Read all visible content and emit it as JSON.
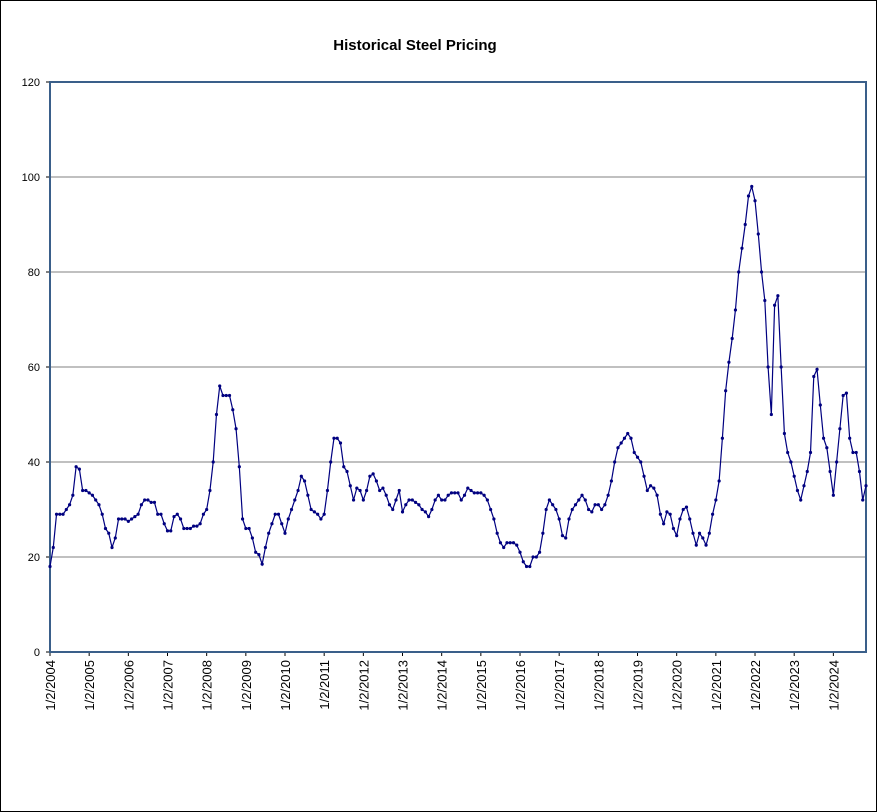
{
  "chart_data": {
    "type": "line",
    "title": "Historical Steel Pricing",
    "x": [
      "1/2/2004",
      "2/2/2004",
      "3/2/2004",
      "4/2/2004",
      "5/2/2004",
      "6/2/2004",
      "7/2/2004",
      "8/2/2004",
      "9/2/2004",
      "10/2/2004",
      "11/2/2004",
      "12/2/2004",
      "1/2/2005",
      "2/2/2005",
      "3/2/2005",
      "4/2/2005",
      "5/2/2005",
      "6/2/2005",
      "7/2/2005",
      "8/2/2005",
      "9/2/2005",
      "10/2/2005",
      "11/2/2005",
      "12/2/2005",
      "1/2/2006",
      "2/2/2006",
      "3/2/2006",
      "4/2/2006",
      "5/2/2006",
      "6/2/2006",
      "7/2/2006",
      "8/2/2006",
      "9/2/2006",
      "10/2/2006",
      "11/2/2006",
      "12/2/2006",
      "1/2/2007",
      "2/2/2007",
      "3/2/2007",
      "4/2/2007",
      "5/2/2007",
      "6/2/2007",
      "7/2/2007",
      "8/2/2007",
      "9/2/2007",
      "10/2/2007",
      "11/2/2007",
      "12/2/2007",
      "1/2/2008",
      "2/2/2008",
      "3/2/2008",
      "4/2/2008",
      "5/2/2008",
      "6/2/2008",
      "7/2/2008",
      "8/2/2008",
      "9/2/2008",
      "10/2/2008",
      "11/2/2008",
      "12/2/2008",
      "1/2/2009",
      "2/2/2009",
      "3/2/2009",
      "4/2/2009",
      "5/2/2009",
      "6/2/2009",
      "7/2/2009",
      "8/2/2009",
      "9/2/2009",
      "10/2/2009",
      "11/2/2009",
      "12/2/2009",
      "1/2/2010",
      "2/2/2010",
      "3/2/2010",
      "4/2/2010",
      "5/2/2010",
      "6/2/2010",
      "7/2/2010",
      "8/2/2010",
      "9/2/2010",
      "10/2/2010",
      "11/2/2010",
      "12/2/2010",
      "1/2/2011",
      "2/2/2011",
      "3/2/2011",
      "4/2/2011",
      "5/2/2011",
      "6/2/2011",
      "7/2/2011",
      "8/2/2011",
      "9/2/2011",
      "10/2/2011",
      "11/2/2011",
      "12/2/2011",
      "1/2/2012",
      "2/2/2012",
      "3/2/2012",
      "4/2/2012",
      "5/2/2012",
      "6/2/2012",
      "7/2/2012",
      "8/2/2012",
      "9/2/2012",
      "10/2/2012",
      "11/2/2012",
      "12/2/2012",
      "1/2/2013",
      "2/2/2013",
      "3/2/2013",
      "4/2/2013",
      "5/2/2013",
      "6/2/2013",
      "7/2/2013",
      "8/2/2013",
      "9/2/2013",
      "10/2/2013",
      "11/2/2013",
      "12/2/2013",
      "1/2/2014",
      "2/2/2014",
      "3/2/2014",
      "4/2/2014",
      "5/2/2014",
      "6/2/2014",
      "7/2/2014",
      "8/2/2014",
      "9/2/2014",
      "10/2/2014",
      "11/2/2014",
      "12/2/2014",
      "1/2/2015",
      "2/2/2015",
      "3/2/2015",
      "4/2/2015",
      "5/2/2015",
      "6/2/2015",
      "7/2/2015",
      "8/2/2015",
      "9/2/2015",
      "10/2/2015",
      "11/2/2015",
      "12/2/2015",
      "1/2/2016",
      "2/2/2016",
      "3/2/2016",
      "4/2/2016",
      "5/2/2016",
      "6/2/2016",
      "7/2/2016",
      "8/2/2016",
      "9/2/2016",
      "10/2/2016",
      "11/2/2016",
      "12/2/2016",
      "1/2/2017",
      "2/2/2017",
      "3/2/2017",
      "4/2/2017",
      "5/2/2017",
      "6/2/2017",
      "7/2/2017",
      "8/2/2017",
      "9/2/2017",
      "10/2/2017",
      "11/2/2017",
      "12/2/2017",
      "1/2/2018",
      "2/2/2018",
      "3/2/2018",
      "4/2/2018",
      "5/2/2018",
      "6/2/2018",
      "7/2/2018",
      "8/2/2018",
      "9/2/2018",
      "10/2/2018",
      "11/2/2018",
      "12/2/2018",
      "1/2/2019",
      "2/2/2019",
      "3/2/2019",
      "4/2/2019",
      "5/2/2019",
      "6/2/2019",
      "7/2/2019",
      "8/2/2019",
      "9/2/2019",
      "10/2/2019",
      "11/2/2019",
      "12/2/2019",
      "1/2/2020",
      "2/2/2020",
      "3/2/2020",
      "4/2/2020",
      "5/2/2020",
      "6/2/2020",
      "7/2/2020",
      "8/2/2020",
      "9/2/2020",
      "10/2/2020",
      "11/2/2020",
      "12/2/2020",
      "1/2/2021",
      "2/2/2021",
      "3/2/2021",
      "4/2/2021",
      "5/2/2021",
      "6/2/2021",
      "7/2/2021",
      "8/2/2021",
      "9/2/2021",
      "10/2/2021",
      "11/2/2021",
      "12/2/2021",
      "1/2/2022",
      "2/2/2022",
      "3/2/2022",
      "4/2/2022",
      "5/2/2022",
      "6/2/2022",
      "7/2/2022",
      "8/2/2022",
      "9/2/2022",
      "10/2/2022",
      "11/2/2022",
      "12/2/2022",
      "1/2/2023",
      "2/2/2023",
      "3/2/2023",
      "4/2/2023",
      "5/2/2023",
      "6/2/2023",
      "7/2/2023",
      "8/2/2023",
      "9/2/2023",
      "10/2/2023",
      "11/2/2023",
      "12/2/2023",
      "1/2/2024",
      "2/2/2024",
      "3/2/2024",
      "4/2/2024",
      "5/2/2024",
      "6/2/2024",
      "7/2/2024",
      "8/2/2024",
      "9/2/2024",
      "10/2/2024",
      "11/2/2024"
    ],
    "values": [
      18,
      22,
      29,
      29,
      29,
      30,
      31,
      33,
      39,
      38.5,
      34,
      34,
      33.5,
      33,
      32,
      31,
      29,
      26,
      25,
      22,
      24,
      28,
      28,
      28,
      27.5,
      28,
      28.5,
      29,
      31,
      32,
      32,
      31.5,
      31.5,
      29,
      29,
      27,
      25.5,
      25.5,
      28.5,
      29,
      28,
      26,
      26,
      26,
      26.5,
      26.5,
      27,
      29,
      30,
      34,
      40,
      50,
      56,
      54,
      54,
      54,
      51,
      47,
      39,
      28,
      26,
      26,
      24,
      21,
      20.5,
      18.5,
      22,
      25,
      27,
      29,
      29,
      27,
      25,
      28,
      30,
      32,
      34,
      37,
      36,
      33,
      30,
      29.5,
      29,
      28,
      29,
      34,
      40,
      45,
      45,
      44,
      39,
      38,
      35,
      32,
      34.5,
      34,
      32,
      34,
      37,
      37.5,
      36,
      34,
      34.5,
      33,
      31,
      30,
      32,
      34,
      29.5,
      31,
      32,
      32,
      31.5,
      31,
      30,
      29.5,
      28.5,
      30,
      32,
      33,
      32,
      32,
      33,
      33.5,
      33.5,
      33.5,
      32,
      33,
      34.5,
      34,
      33.5,
      33.5,
      33.5,
      33,
      32,
      30,
      28,
      25,
      23,
      22,
      23,
      23,
      23,
      22.5,
      21,
      19,
      18,
      18,
      20,
      20,
      21,
      25,
      30,
      32,
      31,
      30,
      28,
      24.5,
      24,
      28,
      30,
      31,
      32,
      33,
      32,
      30,
      29.5,
      31,
      31,
      30,
      31,
      33,
      36,
      40,
      43,
      44,
      45,
      46,
      45,
      42,
      41,
      40,
      37,
      34,
      35,
      34.5,
      33,
      29,
      27,
      29.5,
      29,
      26,
      24.5,
      28,
      30,
      30.5,
      28,
      25,
      22.5,
      25,
      24,
      22.5,
      25,
      29,
      32,
      36,
      45,
      55,
      61,
      66,
      72,
      80,
      85,
      90,
      96,
      98,
      95,
      88,
      80,
      74,
      60,
      50,
      73,
      75,
      60,
      46,
      42,
      40,
      37,
      34,
      32,
      35,
      38,
      42,
      58,
      59.5,
      52,
      45,
      43,
      38,
      33,
      40,
      47,
      54,
      54.5,
      45,
      42,
      42,
      38,
      32,
      35
    ],
    "color": "#000080",
    "xlim": [
      "1/2/2004",
      "11/2/2024"
    ],
    "xticks": [
      "1/2/2004",
      "1/2/2005",
      "1/2/2006",
      "1/2/2007",
      "1/2/2008",
      "1/2/2009",
      "1/2/2010",
      "1/2/2011",
      "1/2/2012",
      "1/2/2013",
      "1/2/2014",
      "1/2/2015",
      "1/2/2016",
      "1/2/2017",
      "1/2/2018",
      "1/2/2019",
      "1/2/2020",
      "1/2/2021",
      "1/2/2022",
      "1/2/2023",
      "1/2/2024"
    ],
    "ylim": [
      0,
      120
    ],
    "yticks": [
      0,
      20,
      40,
      60,
      80,
      100,
      120
    ],
    "grid": true
  }
}
